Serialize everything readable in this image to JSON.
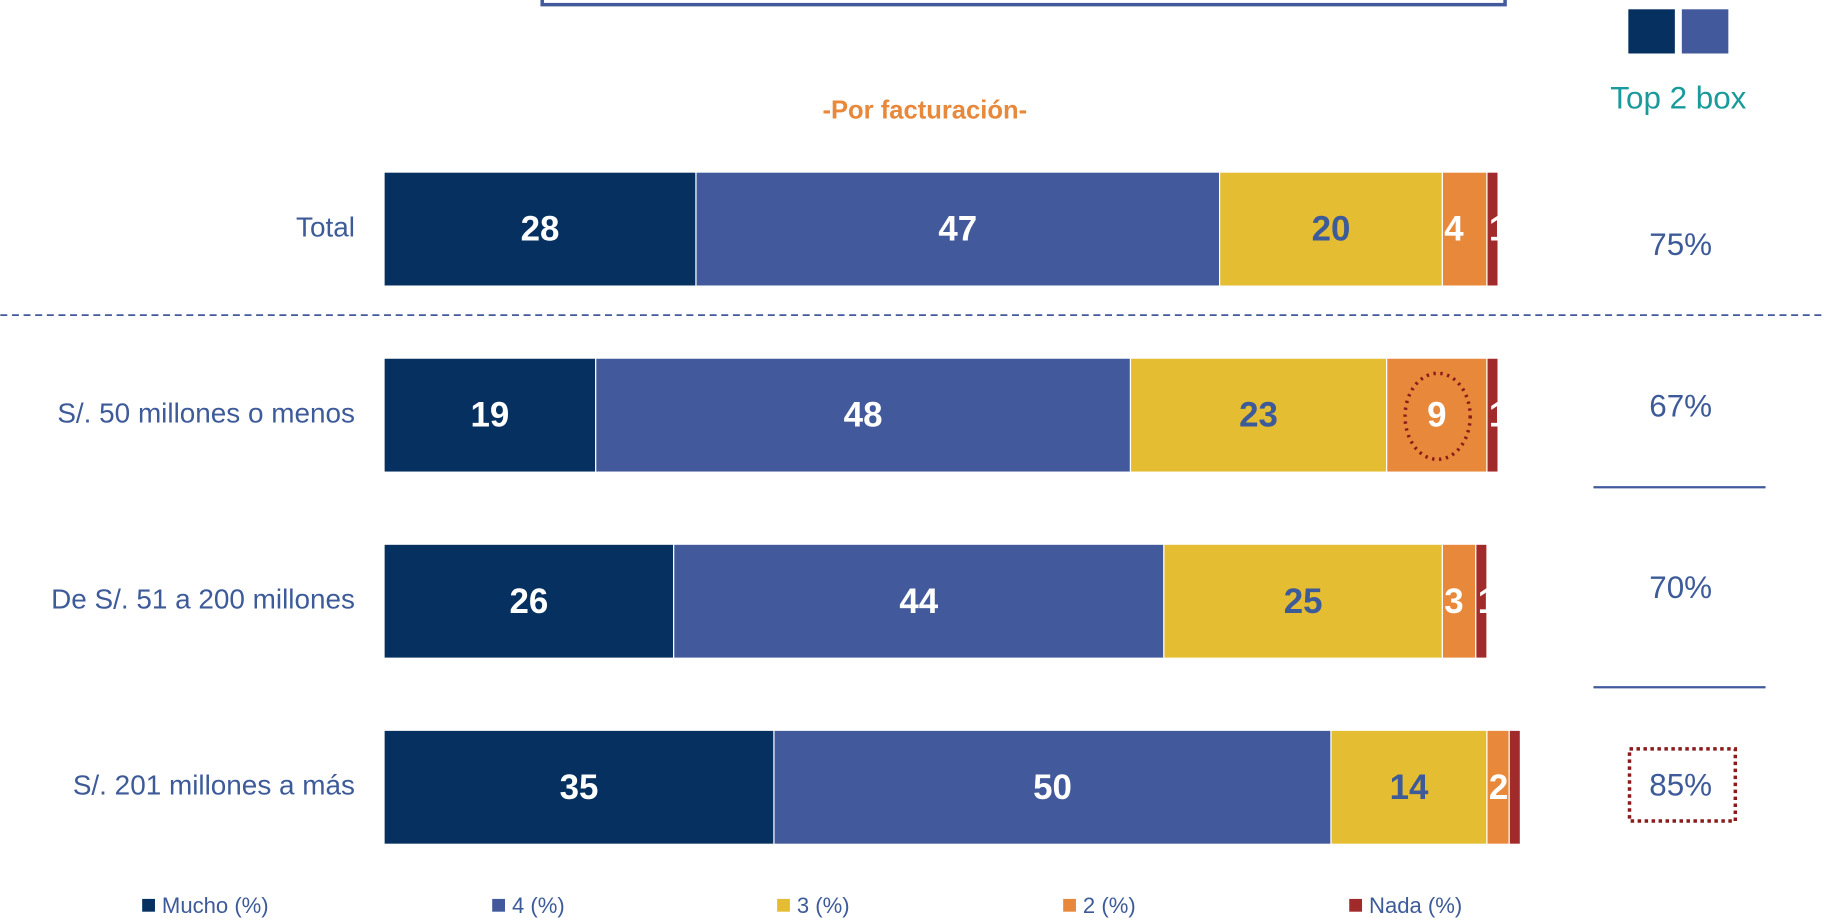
{
  "chart_data": {
    "type": "stacked-barh",
    "subtitle": "-Por facturación-",
    "categories": [
      "Total",
      "S/. 50 millones o menos",
      "De S/. 51 a 200 millones",
      "S/. 201 millones a más"
    ],
    "xlim": [
      0,
      100
    ],
    "series": [
      {
        "name": "Mucho (%)",
        "color": "#06305f",
        "values": [
          28,
          19,
          26,
          35
        ]
      },
      {
        "name": "4 (%)",
        "color": "#425a9b",
        "values": [
          47,
          48,
          44,
          50
        ]
      },
      {
        "name": "3 (%)",
        "color": "#e5bd32",
        "values": [
          20,
          23,
          25,
          14
        ]
      },
      {
        "name": "2 (%)",
        "color": "#e8883a",
        "values": [
          4,
          9,
          3,
          2
        ]
      },
      {
        "name": "Nada (%)",
        "color": "#a12a2a",
        "values": [
          1,
          1,
          1,
          1
        ],
        "value_labels": [
          "1",
          "1",
          "1",
          null
        ]
      }
    ],
    "top2box": {
      "title": "Top 2 box",
      "values": [
        75,
        67,
        70,
        85
      ],
      "value_labels": [
        "75%",
        "67%",
        "70%",
        "85%"
      ]
    }
  }
}
